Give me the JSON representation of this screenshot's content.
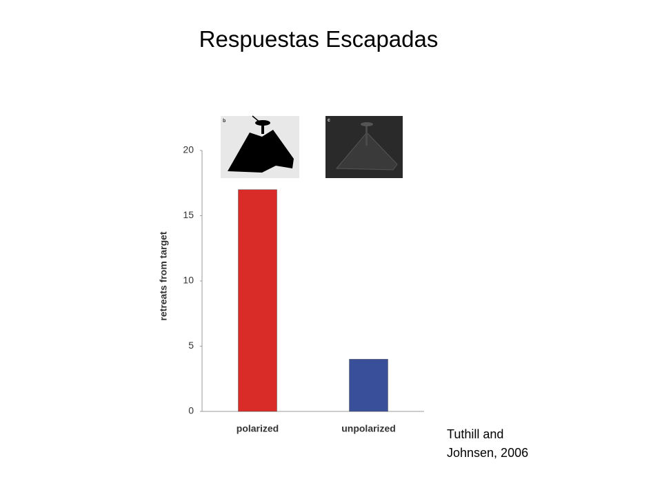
{
  "slide_title": "Respuestas Escapadas",
  "citation": "Tuthill and Johnsen, 2006",
  "panel_labels": [
    "b",
    "c"
  ],
  "chart_data": {
    "type": "bar",
    "y_label": "retreats from target",
    "categories": [
      "polarized",
      "unpolarized"
    ],
    "values": [
      17,
      4
    ],
    "colors": [
      "#d92b27",
      "#3a4f9a"
    ],
    "ylim": [
      0,
      20
    ],
    "yticks": [
      0,
      5,
      10,
      15,
      20
    ],
    "grid": false
  }
}
